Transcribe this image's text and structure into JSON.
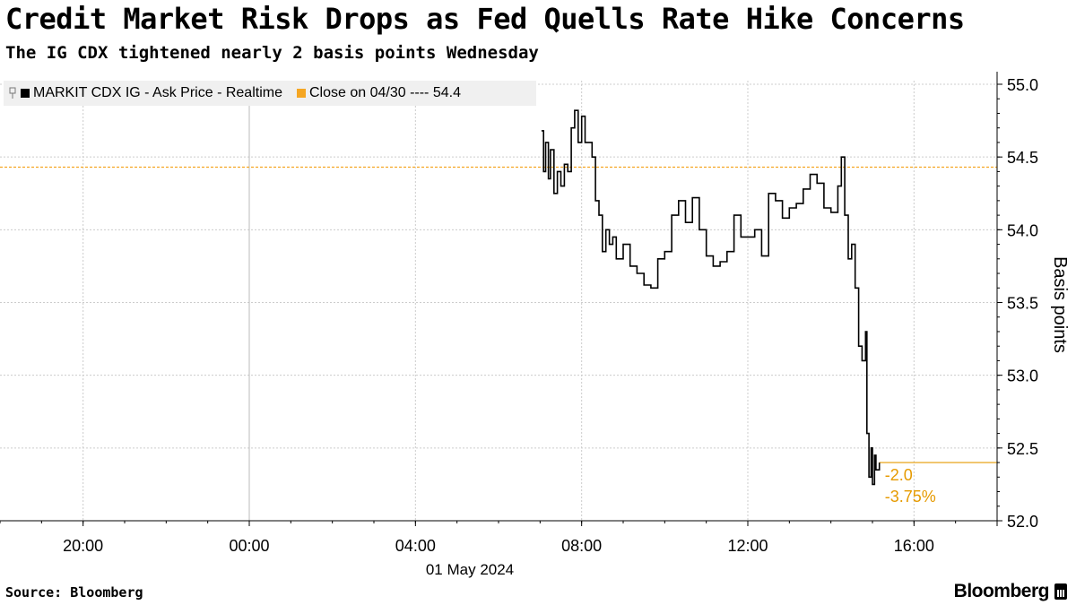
{
  "header": {
    "title": "Credit Market Risk Drops as Fed Quells Rate Hike Concerns",
    "subtitle": "The IG CDX tightened nearly 2 basis points Wednesday"
  },
  "legend": {
    "series_label": "MARKIT CDX IG - Ask Price - Realtime",
    "reference_label": "Close on 04/30 ---- 54.4"
  },
  "footer": {
    "source": "Source: Bloomberg",
    "brand": "Bloomberg"
  },
  "colors": {
    "series": "#000000",
    "reference": "#f5a623",
    "annotation": "#e69a00",
    "grid": "#cccccc",
    "legend_bg": "#f0f0f0"
  },
  "chart_data": {
    "type": "line",
    "ylabel": "Basis points",
    "ylim": [
      52.0,
      55.0
    ],
    "y_ticks": [
      "55.0",
      "54.5",
      "54.0",
      "53.5",
      "53.0",
      "52.5",
      "52.0"
    ],
    "x_range": [
      "2024-04-30T18:00",
      "2024-05-01T18:00"
    ],
    "x_ticks": [
      "20:00",
      "00:00",
      "04:00",
      "08:00",
      "12:00",
      "16:00"
    ],
    "date_label": "01 May 2024",
    "grid": true,
    "reference_line": {
      "name": "Close on 04/30",
      "value": 54.43
    },
    "annotation": {
      "change": "-2.0",
      "change_pct": "-3.75%"
    },
    "last_value": 52.4,
    "series": [
      {
        "name": "MARKIT CDX IG - Ask Price - Realtime",
        "points": [
          [
            "07:02",
            54.68
          ],
          [
            "07:05",
            54.4
          ],
          [
            "07:08",
            54.6
          ],
          [
            "07:12",
            54.35
          ],
          [
            "07:15",
            54.55
          ],
          [
            "07:20",
            54.25
          ],
          [
            "07:25",
            54.4
          ],
          [
            "07:30",
            54.3
          ],
          [
            "07:35",
            54.45
          ],
          [
            "07:40",
            54.4
          ],
          [
            "07:45",
            54.7
          ],
          [
            "07:50",
            54.82
          ],
          [
            "07:55",
            54.6
          ],
          [
            "08:00",
            54.78
          ],
          [
            "08:05",
            54.6
          ],
          [
            "08:15",
            54.5
          ],
          [
            "08:20",
            54.2
          ],
          [
            "08:25",
            54.1
          ],
          [
            "08:30",
            53.85
          ],
          [
            "08:35",
            54.0
          ],
          [
            "08:40",
            53.9
          ],
          [
            "08:45",
            53.95
          ],
          [
            "08:50",
            53.8
          ],
          [
            "09:00",
            53.9
          ],
          [
            "09:10",
            53.75
          ],
          [
            "09:20",
            53.7
          ],
          [
            "09:30",
            53.62
          ],
          [
            "09:40",
            53.6
          ],
          [
            "09:50",
            53.8
          ],
          [
            "10:00",
            53.85
          ],
          [
            "10:10",
            54.1
          ],
          [
            "10:20",
            54.2
          ],
          [
            "10:30",
            54.05
          ],
          [
            "10:40",
            54.22
          ],
          [
            "10:50",
            54.0
          ],
          [
            "11:00",
            53.82
          ],
          [
            "11:10",
            53.75
          ],
          [
            "11:20",
            53.78
          ],
          [
            "11:30",
            53.85
          ],
          [
            "11:40",
            54.1
          ],
          [
            "11:50",
            53.95
          ],
          [
            "12:00",
            53.95
          ],
          [
            "12:10",
            54.0
          ],
          [
            "12:20",
            53.82
          ],
          [
            "12:30",
            54.25
          ],
          [
            "12:40",
            54.2
          ],
          [
            "12:50",
            54.08
          ],
          [
            "13:00",
            54.15
          ],
          [
            "13:10",
            54.18
          ],
          [
            "13:20",
            54.28
          ],
          [
            "13:30",
            54.38
          ],
          [
            "13:40",
            54.32
          ],
          [
            "13:50",
            54.15
          ],
          [
            "14:00",
            54.12
          ],
          [
            "14:10",
            54.3
          ],
          [
            "14:15",
            54.5
          ],
          [
            "14:20",
            54.1
          ],
          [
            "14:25",
            53.8
          ],
          [
            "14:30",
            53.9
          ],
          [
            "14:35",
            53.6
          ],
          [
            "14:40",
            53.2
          ],
          [
            "14:45",
            53.1
          ],
          [
            "14:50",
            53.3
          ],
          [
            "14:52",
            52.6
          ],
          [
            "14:55",
            52.3
          ],
          [
            "14:58",
            52.5
          ],
          [
            "15:00",
            52.25
          ],
          [
            "15:03",
            52.45
          ],
          [
            "15:05",
            52.35
          ],
          [
            "15:10",
            52.4
          ]
        ]
      }
    ]
  }
}
